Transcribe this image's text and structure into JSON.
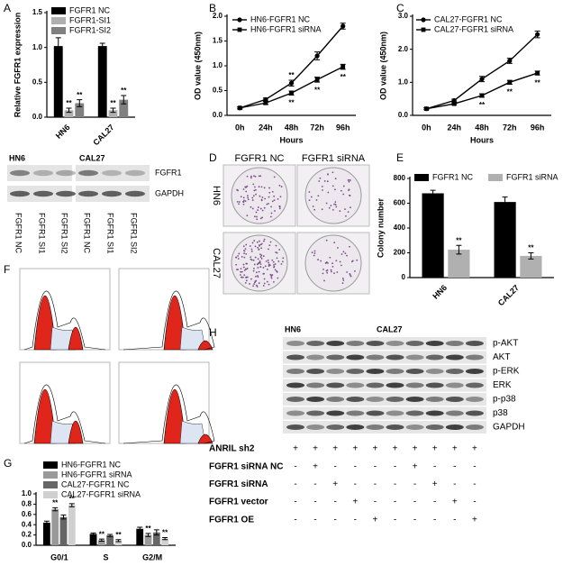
{
  "chart_data": [
    {
      "type": "bar",
      "panel": "A",
      "ylabel": "Relative FGFR1 expression",
      "categories": [
        "HN6",
        "CAL27"
      ],
      "series": [
        {
          "name": "FGFR1 NC",
          "color": "#000000",
          "values": [
            1.02,
            1.02
          ],
          "errors": [
            0.12,
            0.04
          ]
        },
        {
          "name": "FGFR1-SI1",
          "color": "#b0b0b0",
          "values": [
            0.1,
            0.1
          ],
          "errors": [
            0.03,
            0.03
          ],
          "significance": [
            "**",
            "**"
          ]
        },
        {
          "name": "FGFR1-SI2",
          "color": "#808080",
          "values": [
            0.2,
            0.25
          ],
          "errors": [
            0.05,
            0.06
          ],
          "significance": [
            "**",
            "**"
          ]
        }
      ],
      "ylim": [
        0,
        1.5
      ],
      "yticks": [
        {
          "value": 0,
          "label": "0.0"
        },
        0.5,
        {
          "value": 1,
          "label": "1.0"
        },
        1.5
      ],
      "legend": "top-left"
    },
    {
      "type": "line",
      "panel": "B",
      "ylabel": "OD value (450nm)",
      "xlabel": "Hours",
      "categories": [
        "0h",
        "24h",
        "48h",
        "72h",
        "96h"
      ],
      "series": [
        {
          "name": "HN6-FGFR1 NC",
          "color": "#000000",
          "values": [
            0.15,
            0.32,
            0.65,
            1.2,
            1.8
          ],
          "errors": [
            0.02,
            0.03,
            0.06,
            0.08,
            0.06
          ],
          "significance": [
            null,
            null,
            "**",
            null,
            null
          ]
        },
        {
          "name": "HN6-FGFR1 siRNA",
          "color": "#000000",
          "values": [
            0.15,
            0.25,
            0.45,
            0.72,
            0.98
          ],
          "errors": [
            0.02,
            0.03,
            0.04,
            0.05,
            0.05
          ],
          "significance": [
            null,
            null,
            "**",
            "**",
            "**"
          ]
        }
      ],
      "ylim": [
        0,
        2
      ],
      "yticks": [
        {
          "value": 0,
          "label": "0.0"
        },
        0.5,
        {
          "value": 1,
          "label": "1.0"
        },
        1.5,
        {
          "value": 2,
          "label": "2.0"
        }
      ],
      "legend": "top-left"
    },
    {
      "type": "line",
      "panel": "C",
      "ylabel": "OD value (450nm)",
      "xlabel": "Hours",
      "categories": [
        "0h",
        "24h",
        "48h",
        "72h",
        "96h"
      ],
      "series": [
        {
          "name": "CAL27-FGFR1 NC",
          "color": "#000000",
          "values": [
            0.2,
            0.45,
            1.1,
            1.65,
            2.45
          ],
          "errors": [
            0.03,
            0.04,
            0.08,
            0.08,
            0.1
          ]
        },
        {
          "name": "CAL27-FGFR1 siRNA",
          "color": "#000000",
          "values": [
            0.2,
            0.35,
            0.6,
            1.0,
            1.28
          ],
          "errors": [
            0.03,
            0.03,
            0.05,
            0.06,
            0.06
          ],
          "significance": [
            null,
            null,
            "**",
            "**",
            "**"
          ]
        }
      ],
      "ylim": [
        0,
        3
      ],
      "yticks": [
        {
          "value": 0,
          "label": "0.0"
        },
        {
          "value": 1,
          "label": "1.0"
        },
        {
          "value": 2,
          "label": "2.0"
        },
        {
          "value": 3,
          "label": "3.0"
        }
      ],
      "legend": "top-left"
    },
    {
      "type": "bar",
      "panel": "E",
      "ylabel": "Colony number",
      "categories": [
        "HN6",
        "CAL27"
      ],
      "series": [
        {
          "name": "FGFR1 NC",
          "color": "#000000",
          "values": [
            680,
            610
          ],
          "errors": [
            25,
            40
          ]
        },
        {
          "name": "FGFR1 siRNA",
          "color": "#b0b0b0",
          "values": [
            225,
            175
          ],
          "errors": [
            35,
            25
          ],
          "significance": [
            "**",
            "**"
          ]
        }
      ],
      "ylim": [
        0,
        800
      ],
      "yticks": [
        0,
        200,
        400,
        600,
        800
      ],
      "legend": "top"
    },
    {
      "type": "bar",
      "panel": "G",
      "categories": [
        "G0/1",
        "S",
        "G2/M"
      ],
      "series": [
        {
          "name": "HN6-FGFR1 NC",
          "color": "#000000",
          "values": [
            0.44,
            0.22,
            0.32
          ],
          "errors": [
            0.03,
            0.02,
            0.03
          ]
        },
        {
          "name": "HN6-FGFR1 siRNA",
          "color": "#9a9a9a",
          "values": [
            0.7,
            0.1,
            0.2
          ],
          "errors": [
            0.03,
            0.02,
            0.03
          ],
          "significance": [
            "**",
            "**",
            "**"
          ]
        },
        {
          "name": "CAL27-FGFR1 NC",
          "color": "#666666",
          "values": [
            0.55,
            0.19,
            0.25
          ],
          "errors": [
            0.04,
            0.02,
            0.05
          ]
        },
        {
          "name": "CAL27-FGFR1 siRNA",
          "color": "#d0d0d0",
          "values": [
            0.78,
            0.09,
            0.13
          ],
          "errors": [
            0.03,
            0.02,
            0.02
          ],
          "significance": [
            "**",
            "**",
            "**"
          ]
        }
      ],
      "ylim": [
        0,
        1
      ],
      "yticks": [
        {
          "value": 0,
          "label": "0.0"
        },
        0.2,
        0.4,
        0.6,
        0.8,
        {
          "value": 1,
          "label": "1.0"
        }
      ],
      "legend": "top-left"
    }
  ],
  "western_blot_left": {
    "groups": [
      "HN6",
      "CAL27"
    ],
    "bands": [
      "FGFR1",
      "GAPDH"
    ],
    "lanes": [
      "FGFR1 NC",
      "FGFR1 SI1",
      "FGFR1 SI2",
      "FGFR1 NC",
      "FGFR1 SI1",
      "FGFR1 SI2"
    ]
  },
  "colony_assay": {
    "panel": "D",
    "columns": [
      "FGFR1 NC",
      "FGFR1 siRNA"
    ],
    "rows": [
      "HN6",
      "CAL27"
    ]
  },
  "flow_cytometry": {
    "panel": "F"
  },
  "western_blot_h": {
    "panel": "H",
    "groups": [
      "HN6",
      "CAL27"
    ],
    "bands": [
      "p-AKT",
      "AKT",
      "p-ERK",
      "ERK",
      "p-p38",
      "p38",
      "GAPDH"
    ],
    "treatments": [
      {
        "label": "ANRIL sh2",
        "signs": [
          "+",
          "+",
          "+",
          "+",
          "+",
          "+",
          "+",
          "+",
          "+",
          "+"
        ]
      },
      {
        "label": "FGFR1 siRNA NC",
        "signs": [
          "-",
          "+",
          "-",
          "-",
          "-",
          "-",
          "+",
          "-",
          "-",
          "-"
        ]
      },
      {
        "label": "FGFR1 siRNA",
        "signs": [
          "-",
          "-",
          "+",
          "-",
          "-",
          "-",
          "-",
          "+",
          "-",
          "-"
        ]
      },
      {
        "label": "FGFR1 vector",
        "signs": [
          "-",
          "-",
          "-",
          "+",
          "-",
          "-",
          "-",
          "-",
          "+",
          "-"
        ]
      },
      {
        "label": "FGFR1 OE",
        "signs": [
          "-",
          "-",
          "-",
          "-",
          "+",
          "-",
          "-",
          "-",
          "-",
          "+"
        ]
      }
    ]
  }
}
